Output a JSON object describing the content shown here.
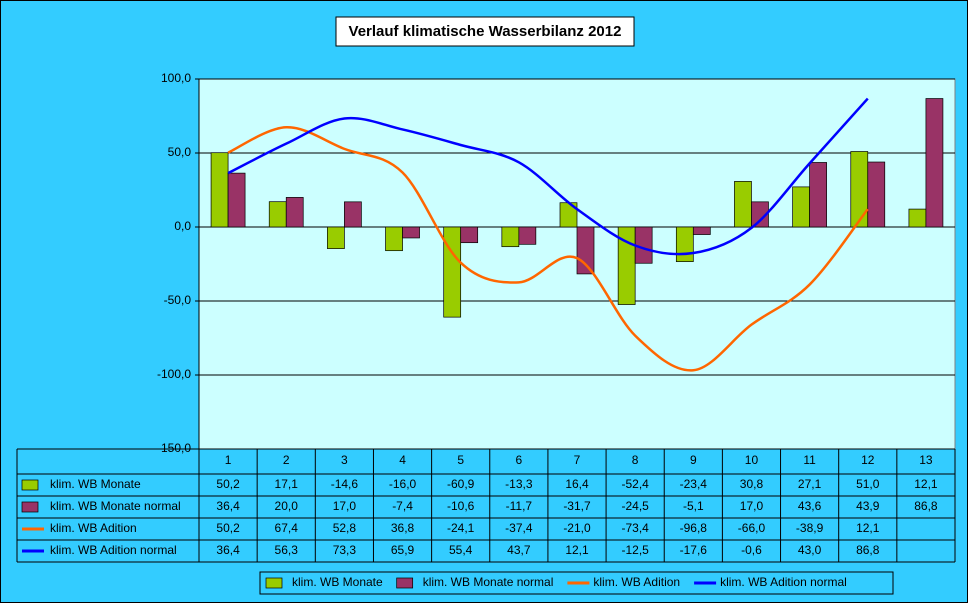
{
  "chart_data": {
    "type": "bar_line",
    "title": "Verlauf klimatische Wasserbilanz 2012",
    "categories": [
      "1",
      "2",
      "3",
      "4",
      "5",
      "6",
      "7",
      "8",
      "9",
      "10",
      "11",
      "12",
      "13"
    ],
    "series": [
      {
        "name": "klim. WB Monate",
        "type": "bar",
        "color": "#99cc00",
        "values": [
          50.2,
          17.1,
          -14.6,
          -16.0,
          -60.9,
          -13.3,
          16.4,
          -52.4,
          -23.4,
          30.8,
          27.1,
          51.0,
          12.1
        ],
        "value_labels": [
          "50,2",
          "17,1",
          "-14,6",
          "-16,0",
          "-60,9",
          "-13,3",
          "16,4",
          "-52,4",
          "-23,4",
          "30,8",
          "27,1",
          "51,0",
          "12,1"
        ]
      },
      {
        "name": "klim. WB Monate normal",
        "type": "bar",
        "color": "#993366",
        "values": [
          36.4,
          20.0,
          17.0,
          -7.4,
          -10.6,
          -11.7,
          -31.7,
          -24.5,
          -5.1,
          17.0,
          43.6,
          43.9,
          86.8
        ],
        "value_labels": [
          "36,4",
          "20,0",
          "17,0",
          "-7,4",
          "-10,6",
          "-11,7",
          "-31,7",
          "-24,5",
          "-5,1",
          "17,0",
          "43,6",
          "43,9",
          "86,8"
        ]
      },
      {
        "name": "klim. WB Adition",
        "type": "line",
        "color": "#ff6600",
        "values": [
          50.2,
          67.4,
          52.8,
          36.8,
          -24.1,
          -37.4,
          -21.0,
          -73.4,
          -96.8,
          -66.0,
          -38.9,
          12.1,
          null
        ],
        "value_labels": [
          "50,2",
          "67,4",
          "52,8",
          "36,8",
          "-24,1",
          "-37,4",
          "-21,0",
          "-73,4",
          "-96,8",
          "-66,0",
          "-38,9",
          "12,1",
          null
        ]
      },
      {
        "name": "klim. WB Adition normal",
        "type": "line",
        "color": "#0000ff",
        "values": [
          36.4,
          56.3,
          73.3,
          65.9,
          55.4,
          43.7,
          12.1,
          -12.5,
          -17.6,
          -0.6,
          43.0,
          86.8,
          null
        ],
        "value_labels": [
          "36,4",
          "56,3",
          "73,3",
          "65,9",
          "55,4",
          "43,7",
          "12,1",
          "-12,5",
          "-17,6",
          "-0,6",
          "43,0",
          "86,8",
          null
        ]
      }
    ],
    "ylim": [
      -150,
      100
    ],
    "yticks": [
      {
        "value": -150,
        "label": "-150,0"
      },
      {
        "value": -100,
        "label": "-100,0"
      },
      {
        "value": -50,
        "label": "-50,0"
      },
      {
        "value": 0,
        "label": "0,0"
      },
      {
        "value": 50,
        "label": "50,0"
      },
      {
        "value": 100,
        "label": "100,0"
      }
    ],
    "grid": true,
    "legend": "bottom"
  }
}
